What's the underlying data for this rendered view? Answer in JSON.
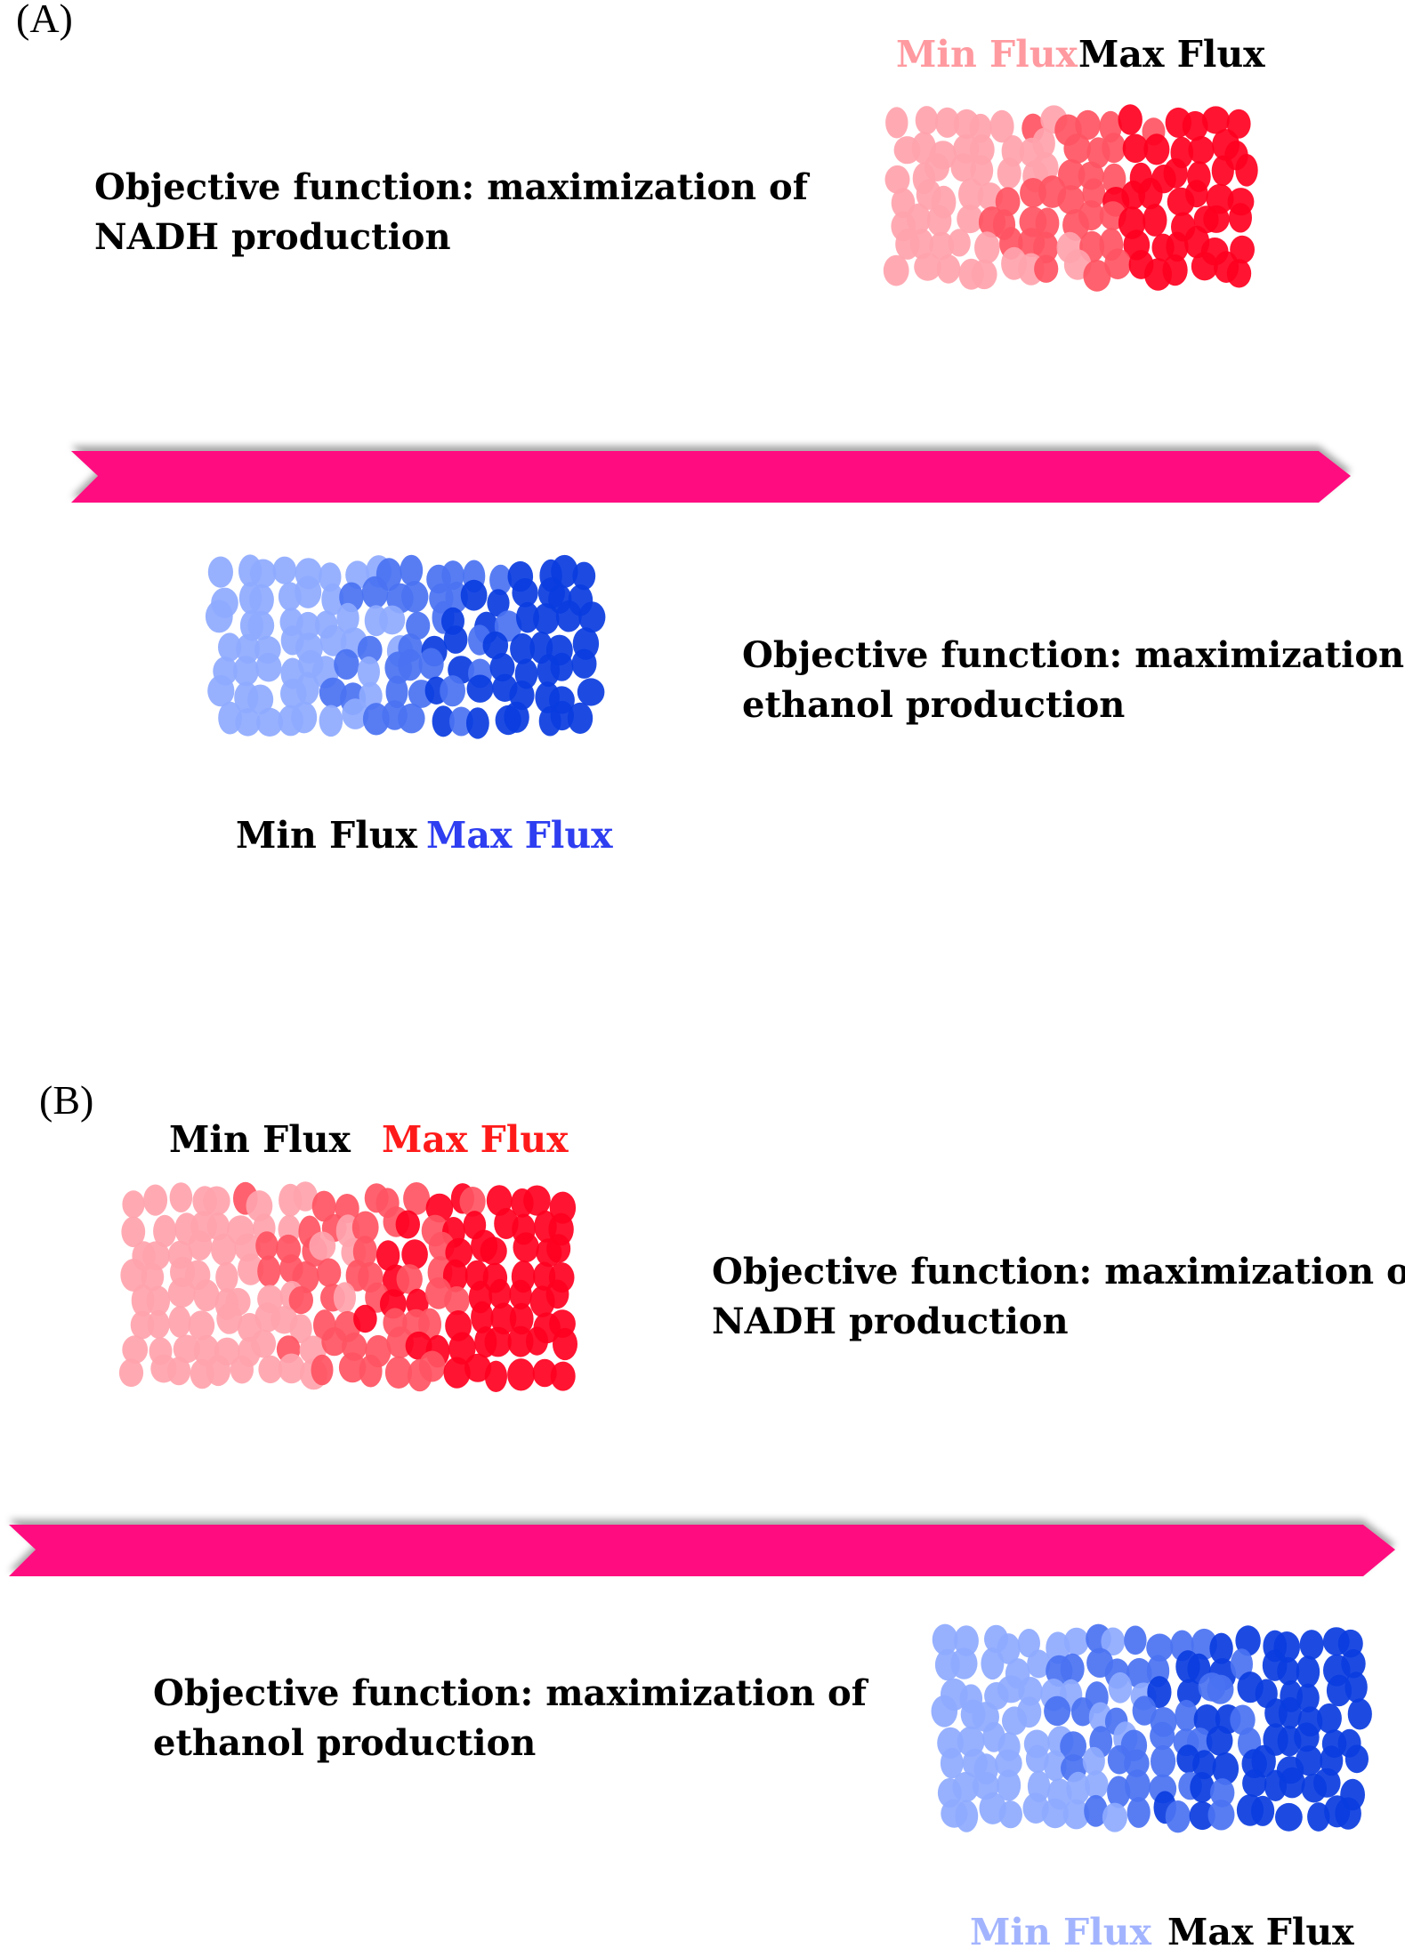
{
  "colors": {
    "arrow": "#ff0f80",
    "red_light": "#ffa3ac",
    "red_mid": "#ff5462",
    "red_dark": "#ff0020",
    "blue_light": "#8eaaff",
    "blue_mid": "#4a72f2",
    "blue_dark": "#0a3ce0",
    "label_pink": "#ff9aa0",
    "label_red": "#ff1a1a",
    "label_blue": "#2e3ef0",
    "label_lightblue": "#a3b4ff",
    "text": "#000000"
  },
  "panelA": {
    "label": "(A)",
    "top": {
      "objective_line1": "Objective function: maximization of",
      "objective_line2": "NADH production",
      "min_flux": "Min Flux",
      "max_flux": "Max Flux"
    },
    "bottom": {
      "objective_line1": "Objective function: maximization of",
      "objective_line2": "ethanol production",
      "min_flux": "Min Flux",
      "max_flux": "Max Flux"
    }
  },
  "panelB": {
    "label": "(B)",
    "top": {
      "objective_line1": "Objective function: maximization of",
      "objective_line2": "NADH production",
      "min_flux": "Min Flux",
      "max_flux": "Max Flux"
    },
    "bottom": {
      "objective_line1": "Objective function: maximization of",
      "objective_line2": "ethanol production",
      "min_flux": "Min Flux",
      "max_flux": "Max Flux"
    }
  }
}
